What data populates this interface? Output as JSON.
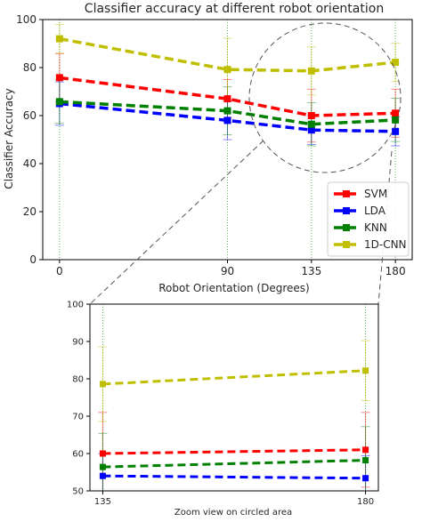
{
  "chart_data": [
    {
      "type": "line",
      "title": "Classifier accuracy at different robot orientation",
      "xlabel": "Robot Orientation (Degrees)",
      "ylabel": "Classifier Accuracy",
      "x": [
        0,
        90,
        135,
        180
      ],
      "x_ticks": [
        "0",
        "90",
        "135",
        "180"
      ],
      "y_ticks": [
        "0",
        "20",
        "40",
        "60",
        "80",
        "100"
      ],
      "ylim": [
        0,
        100
      ],
      "grid": "vertical green dotted lines at each x tick",
      "legend_position": "lower-right",
      "series": [
        {
          "name": "SVM",
          "color": "#ff0000",
          "values": [
            75.8,
            67.0,
            60.0,
            61.0
          ],
          "err": [
            10,
            8,
            11,
            10
          ]
        },
        {
          "name": "LDA",
          "color": "#0000ff",
          "values": [
            65.0,
            58.0,
            54.0,
            53.4
          ],
          "err": [
            9,
            8,
            6,
            6
          ]
        },
        {
          "name": "KNN",
          "color": "#008000",
          "values": [
            65.8,
            62.0,
            56.4,
            58.2
          ],
          "err": [
            9,
            10,
            9,
            9
          ]
        },
        {
          "name": "1D-CNN",
          "color": "#bfbf00",
          "values": [
            92.0,
            79.2,
            78.6,
            82.2
          ],
          "err": [
            6,
            13,
            10,
            8
          ]
        }
      ],
      "annotation": "dashed circle around the 135-180 region, zoomed below"
    },
    {
      "type": "line",
      "caption": "Zoom view on circled area",
      "x": [
        135,
        180
      ],
      "x_ticks": [
        "135",
        "180"
      ],
      "y_ticks": [
        "50",
        "60",
        "70",
        "80",
        "90",
        "100"
      ],
      "ylim": [
        50,
        100
      ],
      "series": [
        {
          "name": "SVM",
          "color": "#ff0000",
          "values": [
            60.0,
            61.0
          ],
          "err": [
            11,
            10
          ]
        },
        {
          "name": "LDA",
          "color": "#0000ff",
          "values": [
            54.0,
            53.4
          ],
          "err": [
            6,
            6
          ]
        },
        {
          "name": "KNN",
          "color": "#008000",
          "values": [
            56.4,
            58.2
          ],
          "err": [
            9,
            9
          ]
        },
        {
          "name": "1D-CNN",
          "color": "#bfbf00",
          "values": [
            78.6,
            82.2
          ],
          "err": [
            10,
            8
          ]
        }
      ]
    }
  ]
}
